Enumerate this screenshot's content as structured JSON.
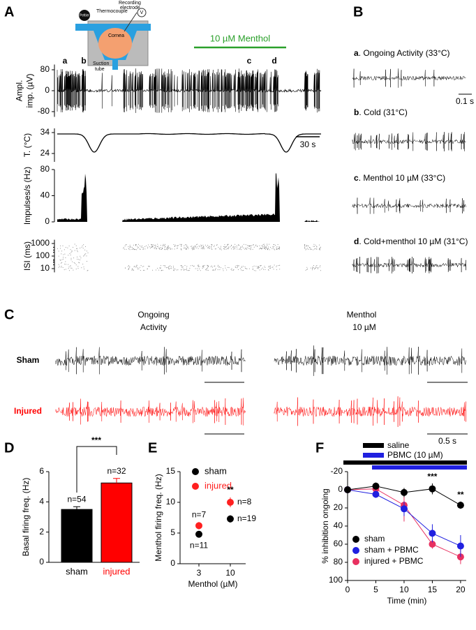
{
  "panel_labels": [
    "A",
    "B",
    "C",
    "D",
    "E",
    "F"
  ],
  "panel_a": {
    "diagram": {
      "peltier": "Peltier",
      "thermocouple": "Thermocouple",
      "electrode": [
        "Recording",
        "electrode"
      ],
      "v": "V",
      "cornea": "Cornea",
      "suction": [
        "Suction",
        "tube"
      ]
    },
    "stimulus": "10 µM Menthol",
    "markers": [
      "a",
      "b",
      "c",
      "d"
    ],
    "time_scale": "30 s",
    "traces": [
      {
        "label": [
          "Ampl.",
          "imp. (µV)"
        ],
        "ylim": [
          -100,
          100
        ],
        "yticks": [
          80,
          0,
          -80
        ]
      },
      {
        "label": [
          "T. (°C)"
        ],
        "ylim": [
          20,
          36
        ],
        "yticks": [
          34,
          24
        ]
      },
      {
        "label": [
          "Impulses/s (Hz)"
        ],
        "ylim": [
          0,
          80
        ],
        "yticks": [
          80,
          40,
          0
        ]
      },
      {
        "label": [
          "ISI (ms)"
        ],
        "ylim": [
          5,
          2000
        ],
        "yticks": [
          1000,
          100,
          10
        ],
        "log": true
      }
    ]
  },
  "panel_b": {
    "items": [
      {
        "letter": "a",
        "text": ". Ongoing Activity (33°C)"
      },
      {
        "letter": "b",
        "text": ". Cold (31°C)"
      },
      {
        "letter": "c",
        "text": ". Menthol 10 µM (33°C)"
      },
      {
        "letter": "d",
        "text": ". Cold+menthol 10 µM (31°C)"
      }
    ],
    "time_scale": "0.1 s"
  },
  "panel_c": {
    "columns": [
      [
        "Ongoing",
        "Activity"
      ],
      [
        "Menthol",
        "10 µM"
      ]
    ],
    "rows": [
      "Sham",
      "Injured"
    ],
    "time_scale": "0.5 s"
  },
  "panel_f_treatments": [
    "saline",
    "PBMC (10 µM)"
  ],
  "chart_data": [
    {
      "type": "bar",
      "ylabel": "Basal firing freq. (Hz)",
      "categories": [
        "sham",
        "injured"
      ],
      "values": [
        3.5,
        5.25
      ],
      "errors": [
        0.18,
        0.3
      ],
      "colors": [
        "#000000",
        "#ff0000"
      ],
      "n_labels": [
        "n=54",
        "n=32"
      ],
      "significance": "***",
      "ylim": [
        0,
        6
      ],
      "yticks": [
        0,
        2,
        4,
        6
      ]
    },
    {
      "type": "errorbar",
      "ylabel": "Menthol firing freq. (Hz)",
      "xlabel": "Menthol (µM)",
      "categories": [
        "3",
        "10"
      ],
      "series": [
        {
          "name": "sham",
          "color": "#000000",
          "values": [
            4.8,
            7.3
          ],
          "errors": [
            0.5,
            0.6
          ],
          "n_labels": [
            "n=11",
            "n=19"
          ]
        },
        {
          "name": "injured",
          "color": "#ff2020",
          "values": [
            6.2,
            10.0
          ],
          "errors": [
            0.6,
            0.8
          ],
          "n_labels": [
            "n=7",
            "n=8"
          ]
        }
      ],
      "significance": "**",
      "ylim": [
        0,
        15
      ],
      "yticks": [
        0,
        5,
        10,
        15
      ]
    },
    {
      "type": "line",
      "ylabel": "% inhibition ongoing",
      "xlabel": "Time (min)",
      "x": [
        0,
        5,
        10,
        15,
        20
      ],
      "xlim": [
        0,
        21
      ],
      "xticks": [
        0,
        5,
        10,
        15,
        20
      ],
      "series": [
        {
          "name": "sham",
          "color": "#000000",
          "values": [
            0,
            -4,
            3,
            -1,
            17
          ],
          "errors": [
            0,
            4,
            5,
            6,
            4
          ]
        },
        {
          "name": "sham + PBMC",
          "color": "#2020e0",
          "values": [
            0,
            5,
            21,
            48,
            62
          ],
          "errors": [
            0,
            4,
            8,
            10,
            12
          ]
        },
        {
          "name": "injured + PBMC",
          "color": "#e83060",
          "values": [
            0,
            -1,
            17,
            60,
            74
          ],
          "errors": [
            0,
            5,
            18,
            5,
            8
          ]
        }
      ],
      "significance": [
        "***",
        "**"
      ],
      "ylim": [
        -20,
        100
      ],
      "y_inverted": true,
      "yticks": [
        -20,
        0,
        20,
        40,
        60,
        80,
        100
      ]
    }
  ]
}
